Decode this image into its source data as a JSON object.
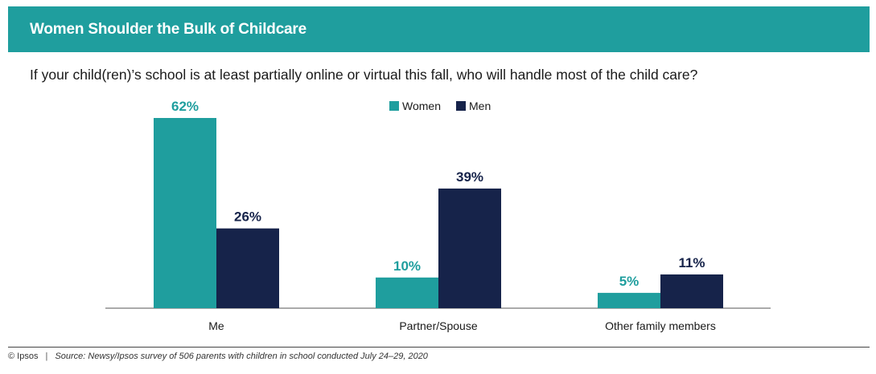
{
  "header": {
    "title": "Women Shoulder the Bulk of Childcare"
  },
  "question": "If your child(ren)’s school is at least partially online or virtual this fall, who will handle most of the child care?",
  "colors": {
    "title_bar": "#1f9e9e",
    "women": "#1f9e9e",
    "men": "#16234a"
  },
  "chart_data": {
    "type": "bar",
    "categories": [
      "Me",
      "Partner/Spouse",
      "Other family members"
    ],
    "series": [
      {
        "name": "Women",
        "values": [
          62,
          10,
          5
        ],
        "labels": [
          "62%",
          "10%",
          "5%"
        ],
        "color": "#1f9e9e"
      },
      {
        "name": "Men",
        "values": [
          26,
          39,
          11
        ],
        "labels": [
          "26%",
          "39%",
          "11%"
        ],
        "color": "#16234a"
      }
    ],
    "title": "",
    "xlabel": "",
    "ylabel": "",
    "ylim": [
      0,
      62
    ],
    "grid": false,
    "legend": "top-center"
  },
  "footer": {
    "copyright": "© Ipsos",
    "separator": "|",
    "source": "Source: Newsy/Ipsos survey of 506 parents with children in school conducted July 24–29, 2020"
  }
}
